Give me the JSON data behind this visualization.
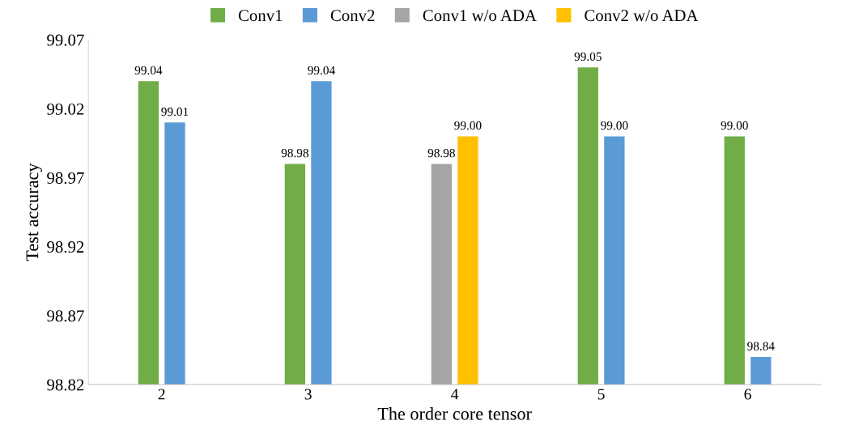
{
  "chart_data": {
    "type": "bar",
    "xlabel": "The order core tensor",
    "ylabel": "Test accuracy",
    "categories": [
      "2",
      "3",
      "4",
      "5",
      "6"
    ],
    "series": [
      {
        "name": "Conv1",
        "color": "#70ad47",
        "values": [
          99.04,
          98.98,
          null,
          99.05,
          99.0
        ],
        "value_labels": [
          "99.04",
          "98.98",
          null,
          "99.05",
          "99.00"
        ]
      },
      {
        "name": "Conv2",
        "color": "#5b9bd5",
        "values": [
          99.01,
          99.04,
          null,
          99.0,
          98.84
        ],
        "value_labels": [
          "99.01",
          "99.04",
          null,
          "99.00",
          "98.84"
        ]
      },
      {
        "name": "Conv1 w/o ADA",
        "color": "#a5a5a5",
        "values": [
          null,
          null,
          98.98,
          null,
          null
        ],
        "value_labels": [
          null,
          null,
          "98.98",
          null,
          null
        ]
      },
      {
        "name": "Conv2 w/o ADA",
        "color": "#ffc000",
        "values": [
          null,
          null,
          99.0,
          null,
          null
        ],
        "value_labels": [
          null,
          null,
          "99.00",
          null,
          null
        ]
      }
    ],
    "ylim": [
      98.82,
      99.07
    ],
    "yticks": [
      98.82,
      98.87,
      98.92,
      98.97,
      99.02,
      99.07
    ],
    "grid": false,
    "legend": "top"
  }
}
